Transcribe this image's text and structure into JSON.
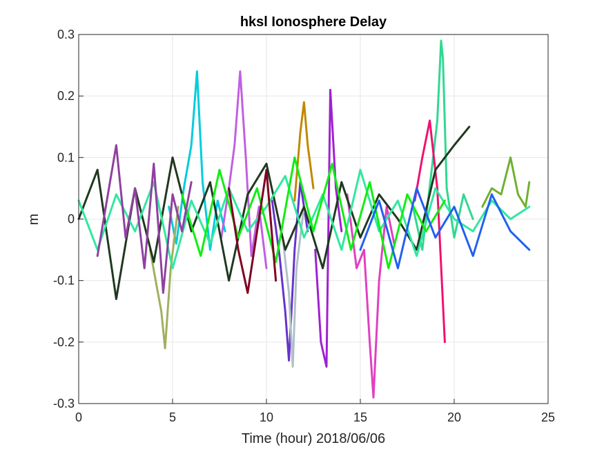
{
  "chart_data": {
    "type": "line",
    "title": "hksl Ionosphere Delay",
    "xlabel": "Time (hour)  2018/06/06",
    "ylabel": "m",
    "xlim": [
      0,
      25
    ],
    "ylim": [
      -0.3,
      0.3
    ],
    "x_ticks": [
      "0",
      "5",
      "10",
      "15",
      "20",
      "25"
    ],
    "x_tick_values": [
      0,
      5,
      10,
      15,
      20,
      25
    ],
    "y_ticks": [
      "-0.3",
      "-0.2",
      "-0.1",
      "0",
      "0.1",
      "0.2",
      "0.3"
    ],
    "y_tick_values": [
      -0.3,
      -0.2,
      -0.1,
      0,
      0.1,
      0.2,
      0.3
    ],
    "grid": true,
    "legend": "none",
    "series": [
      {
        "color": "#00CCDD",
        "x": [
          4.8,
          5.2,
          5.6,
          6.0,
          6.3,
          6.6,
          7.0,
          7.4,
          7.8
        ],
        "y": [
          0.02,
          -0.04,
          0.05,
          0.12,
          0.24,
          0.06,
          -0.05,
          0.03,
          -0.02
        ]
      },
      {
        "color": "#C060E0",
        "x": [
          7.6,
          8.0,
          8.3,
          8.6,
          8.9,
          9.2,
          9.6,
          10.0
        ],
        "y": [
          -0.03,
          0.05,
          0.12,
          0.24,
          0.1,
          -0.06,
          0.02,
          -0.08
        ]
      },
      {
        "color": "#30D890",
        "x": [
          17.8,
          18.3,
          18.8,
          19.1,
          19.3,
          19.4,
          19.6,
          20.0,
          20.5,
          21.0
        ],
        "y": [
          0.02,
          -0.05,
          0.08,
          0.16,
          0.29,
          0.26,
          0.05,
          -0.03,
          0.04,
          0.0
        ]
      },
      {
        "color": "#E040C0",
        "x": [
          14.3,
          14.8,
          15.2,
          15.5,
          15.7,
          16.0,
          16.4,
          16.8
        ],
        "y": [
          0.04,
          -0.08,
          -0.05,
          -0.2,
          -0.29,
          -0.1,
          0.02,
          -0.04
        ]
      },
      {
        "color": "#6633CC",
        "x": [
          10.3,
          10.7,
          11.0,
          11.2,
          11.5,
          11.8,
          12.2
        ],
        "y": [
          0.03,
          -0.06,
          -0.15,
          -0.23,
          -0.05,
          0.06,
          -0.02
        ]
      },
      {
        "color": "#B0C0C8",
        "x": [
          10.9,
          11.2,
          11.4,
          11.6,
          12.0
        ],
        "y": [
          -0.04,
          -0.12,
          -0.24,
          -0.08,
          0.02
        ]
      },
      {
        "color": "#A020D0",
        "x": [
          12.6,
          12.9,
          13.2,
          13.4,
          13.7,
          14.0
        ],
        "y": [
          -0.05,
          -0.2,
          -0.24,
          0.21,
          0.05,
          -0.02
        ]
      },
      {
        "color": "#A0B060",
        "x": [
          3.8,
          4.1,
          4.4,
          4.6,
          4.9,
          5.3
        ],
        "y": [
          -0.05,
          -0.1,
          -0.15,
          -0.21,
          -0.08,
          0.02
        ]
      },
      {
        "color": "#C08800",
        "x": [
          11.5,
          11.8,
          12.0,
          12.2,
          12.5
        ],
        "y": [
          0.03,
          0.14,
          0.19,
          0.12,
          0.05
        ]
      },
      {
        "color": "#F01070",
        "x": [
          17.9,
          18.3,
          18.7,
          19.1,
          19.5
        ],
        "y": [
          0.03,
          0.1,
          0.16,
          0.05,
          -0.2
        ]
      },
      {
        "color": "#70B030",
        "x": [
          21.5,
          22.0,
          22.5,
          23.0,
          23.4,
          23.8,
          24.0
        ],
        "y": [
          0.02,
          0.05,
          0.04,
          0.1,
          0.04,
          0.02,
          0.06
        ]
      },
      {
        "color": "#203820",
        "x": [
          0.0,
          1.0,
          2.0,
          3.0,
          4.0,
          5.0,
          6.0,
          7.0,
          8.0,
          9.0,
          10.0,
          11.0,
          12.0,
          13.0,
          14.0,
          15.0,
          16.0,
          17.0,
          18.0,
          19.0,
          20.0,
          20.8
        ],
        "y": [
          0.0,
          0.08,
          -0.13,
          0.05,
          -0.07,
          0.1,
          -0.02,
          0.06,
          -0.1,
          0.04,
          0.09,
          -0.05,
          0.02,
          -0.08,
          0.06,
          -0.03,
          0.04,
          0.0,
          -0.05,
          0.08,
          0.12,
          0.15
        ]
      },
      {
        "color": "#30E8A0",
        "x": [
          0.0,
          1.0,
          2.0,
          3.0,
          4.0,
          5.0,
          6.0,
          7.0,
          8.0,
          9.0,
          10.0,
          11.0,
          12.0,
          13.0,
          14.0,
          15.0,
          16.0,
          17.0,
          18.0,
          19.0,
          20.0,
          21.0,
          22.0,
          23.0,
          24.0
        ],
        "y": [
          0.03,
          -0.05,
          0.04,
          -0.02,
          0.06,
          -0.08,
          0.03,
          -0.04,
          0.05,
          -0.02,
          0.02,
          0.07,
          -0.03,
          0.04,
          -0.05,
          0.08,
          -0.02,
          0.03,
          -0.06,
          0.05,
          0.0,
          -0.02,
          0.03,
          0.0,
          0.02
        ]
      },
      {
        "color": "#10EE10",
        "x": [
          5.5,
          6.5,
          7.5,
          8.5,
          9.5,
          10.5,
          11.5,
          12.5,
          13.5,
          14.5,
          15.5,
          16.5,
          17.5,
          18.5,
          19.5
        ],
        "y": [
          0.04,
          -0.06,
          0.08,
          -0.03,
          0.05,
          -0.07,
          0.1,
          -0.02,
          0.09,
          -0.05,
          0.06,
          -0.08,
          0.04,
          -0.02,
          0.03
        ]
      },
      {
        "color": "#2060F0",
        "x": [
          15.0,
          16.0,
          17.0,
          18.0,
          19.0,
          20.0,
          21.0,
          22.0,
          23.0,
          24.0
        ],
        "y": [
          -0.05,
          0.03,
          -0.08,
          0.05,
          -0.03,
          0.02,
          -0.06,
          0.04,
          -0.02,
          -0.05
        ]
      },
      {
        "color": "#9040A0",
        "x": [
          1.0,
          2.0,
          2.5,
          3.0,
          3.5,
          4.0,
          4.5,
          5.0,
          5.5,
          6.0
        ],
        "y": [
          -0.06,
          0.12,
          -0.03,
          0.05,
          -0.08,
          0.09,
          -0.12,
          0.04,
          -0.02,
          0.06
        ]
      },
      {
        "color": "#800020",
        "x": [
          8.0,
          8.5,
          9.0,
          9.5,
          10.0,
          10.5
        ],
        "y": [
          0.05,
          -0.05,
          -0.12,
          -0.02,
          0.08,
          -0.1
        ]
      }
    ]
  }
}
